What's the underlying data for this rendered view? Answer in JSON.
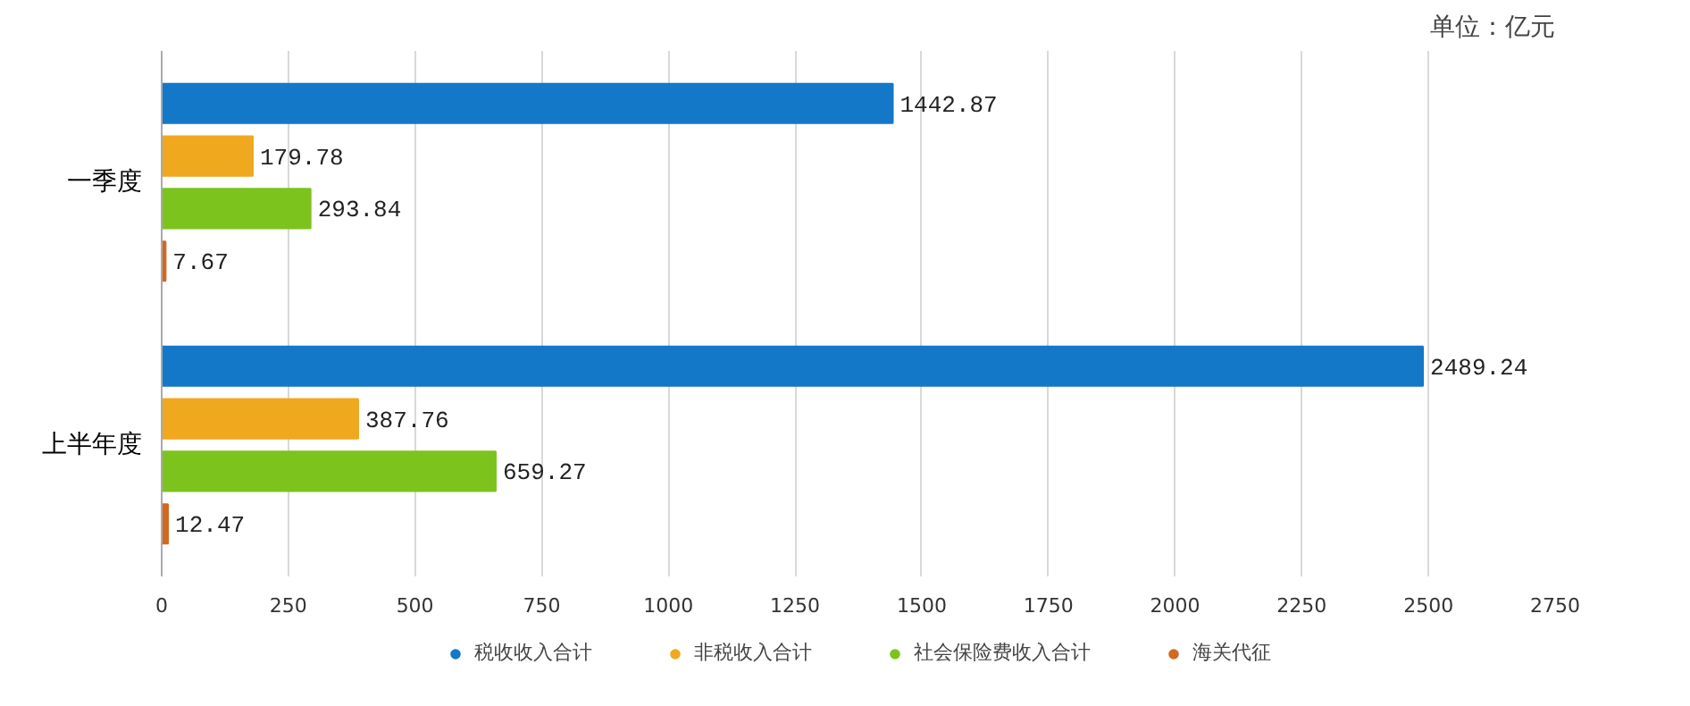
{
  "chart_data": {
    "type": "bar",
    "orientation": "horizontal",
    "categories": [
      "一季度",
      "上半年度"
    ],
    "series": [
      {
        "name": "税收收入合计",
        "color": "#1478c8",
        "values": [
          1442.87,
          2489.24
        ]
      },
      {
        "name": "非税收入合计",
        "color": "#f0a81e",
        "values": [
          179.78,
          387.76
        ]
      },
      {
        "name": "社会保险费收入合计",
        "color": "#7dc31e",
        "values": [
          293.84,
          659.27
        ]
      },
      {
        "name": "海关代征",
        "color": "#d2691e",
        "values": [
          7.67,
          12.47
        ]
      }
    ],
    "xlim": [
      0,
      2750
    ],
    "xticks": [
      0,
      250,
      500,
      750,
      1000,
      1250,
      1500,
      1750,
      2000,
      2250,
      2500,
      2750
    ],
    "grid": "x",
    "legend": "bottom",
    "data_labels": true,
    "annotations": [
      "单位：亿元"
    ]
  }
}
